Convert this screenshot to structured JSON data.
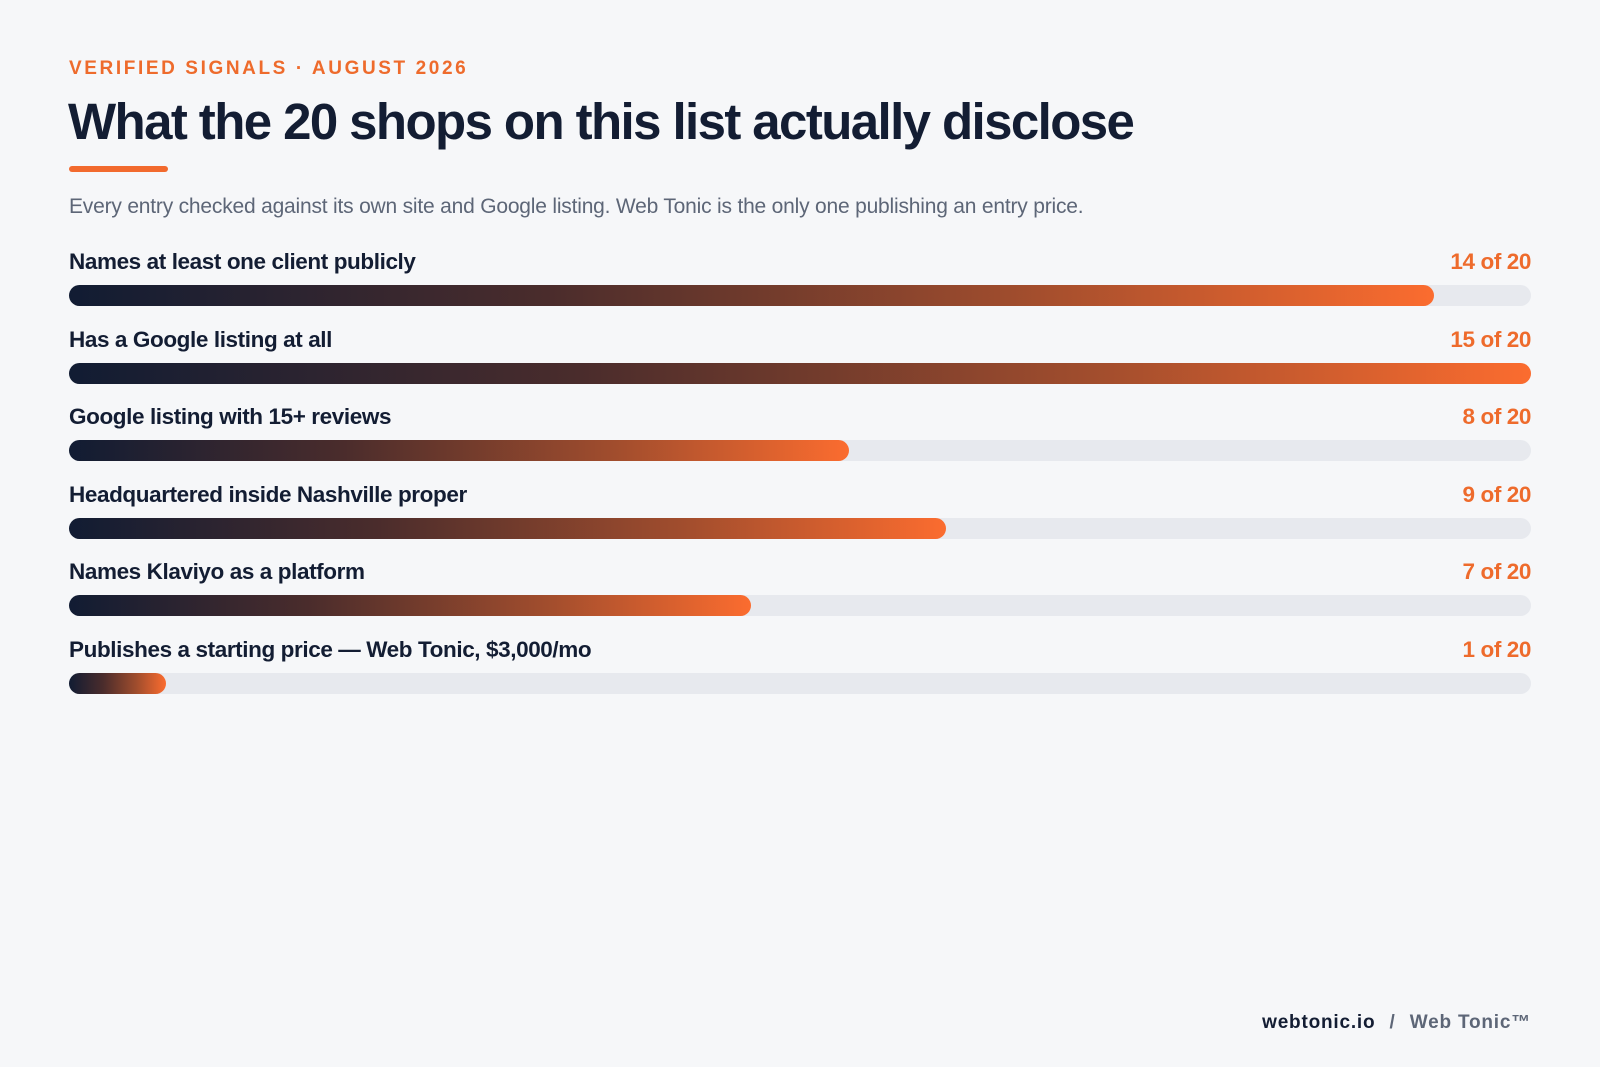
{
  "header": {
    "eyebrow": "VERIFIED SIGNALS · AUGUST 2026",
    "title": "What the 20 shops on this list actually disclose",
    "subtitle": "Every entry checked against its own site and Google listing. Web Tonic is the only one publishing an entry price."
  },
  "colors": {
    "accent": "#ee6b2c",
    "ink": "#131d33",
    "muted": "#5d6677",
    "track": "#e7e9ee",
    "gradient_start": "#111c33",
    "gradient_end": "#fb6c2f"
  },
  "chart_data": {
    "type": "bar",
    "orientation": "horizontal",
    "scale_max": 15,
    "categories": [
      "Names at least one client publicly",
      "Has a Google listing at all",
      "Google listing with 15+ reviews",
      "Headquartered inside Nashville proper",
      "Names Klaviyo as a platform",
      "Publishes a starting price — Web Tonic, $3,000/mo"
    ],
    "values": [
      14,
      15,
      8,
      9,
      7,
      1
    ],
    "value_labels": [
      "14 of 20",
      "15 of 20",
      "8 of 20",
      "9 of 20",
      "7 of 20",
      "1 of 20"
    ],
    "total": 20
  },
  "footer": {
    "domain": "webtonic.io",
    "separator": "/",
    "brand": "Web Tonic™"
  }
}
